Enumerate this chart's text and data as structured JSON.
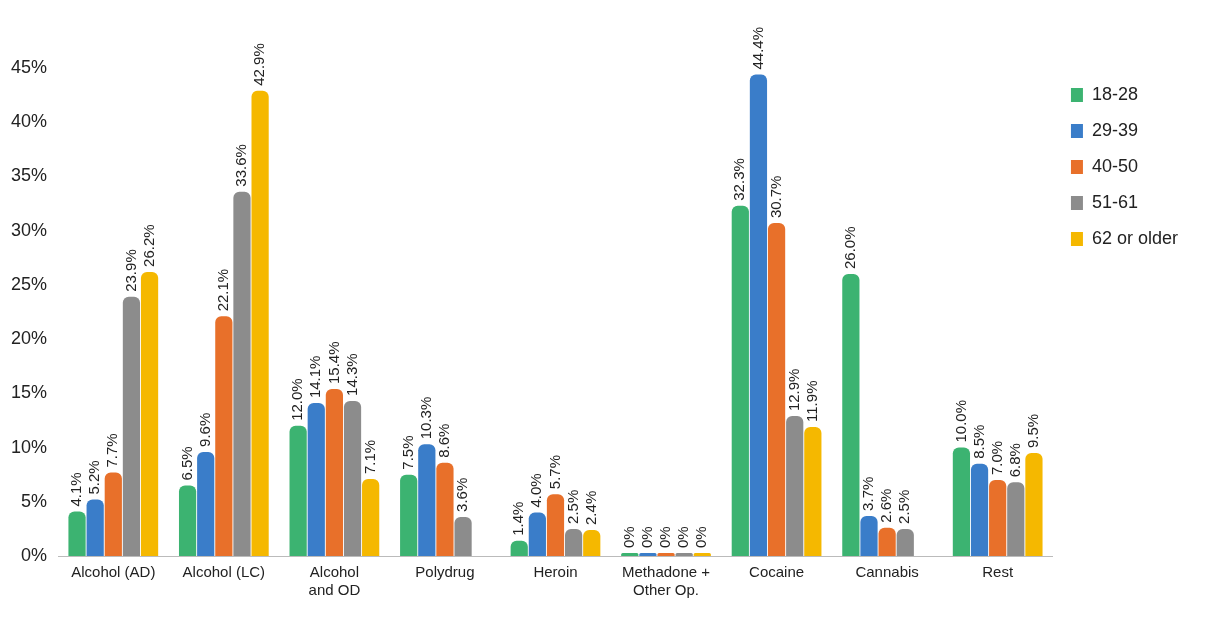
{
  "chart_data": {
    "type": "bar",
    "categories": [
      "Alcohol (AD)",
      "Alcohol (LC)",
      "Alcohol and OD",
      "Polydrug",
      "Heroin",
      "Methadone + Other Op.",
      "Cocaine",
      "Cannabis",
      "Rest"
    ],
    "series": [
      {
        "name": "18-28",
        "color": "#3cb371",
        "values": [
          4.1,
          6.5,
          12.0,
          7.5,
          1.4,
          0,
          32.3,
          26.0,
          10.0
        ],
        "value_labels": [
          "4.1%",
          "6.5%",
          "12.0%",
          "7.5%",
          "1.4%",
          "0%",
          "32.3%",
          "26.0%",
          "10.0%"
        ]
      },
      {
        "name": "29-39",
        "color": "#3a7dc9",
        "values": [
          5.2,
          9.6,
          14.1,
          10.3,
          4.0,
          0,
          44.4,
          3.7,
          8.5
        ],
        "value_labels": [
          "5.2%",
          "9.6%",
          "14.1%",
          "10.3%",
          "4.0%",
          "0%",
          "44.4%",
          "3.7%",
          "8.5%"
        ]
      },
      {
        "name": "40-50",
        "color": "#e8702a",
        "values": [
          7.7,
          22.1,
          15.4,
          8.6,
          5.7,
          0,
          30.7,
          2.6,
          7.0
        ],
        "value_labels": [
          "7.7%",
          "22.1%",
          "15.4%",
          "8.6%",
          "5.7%",
          "0%",
          "30.7%",
          "2.6%",
          "7.0%"
        ]
      },
      {
        "name": "51-61",
        "color": "#8c8c8c",
        "values": [
          23.9,
          33.6,
          14.3,
          3.6,
          2.5,
          0,
          12.9,
          2.5,
          6.8
        ],
        "value_labels": [
          "23.9%",
          "33.6%",
          "14.3%",
          "3.6%",
          "2.5%",
          "0%",
          "12.9%",
          "2.5%",
          "6.8%"
        ]
      },
      {
        "name": "62 or older",
        "color": "#f5b800",
        "values": [
          26.2,
          42.9,
          7.1,
          null,
          2.4,
          0,
          11.9,
          null,
          9.5
        ],
        "value_labels": [
          "26.2%",
          "42.9%",
          "7.1%",
          null,
          "2.4%",
          "0%",
          "11.9%",
          null,
          "9.5%"
        ]
      }
    ],
    "ylim": [
      0,
      45
    ],
    "yticks": [
      {
        "value": 0,
        "label": "0%"
      },
      {
        "value": 5,
        "label": "5%"
      },
      {
        "value": 10,
        "label": "10%"
      },
      {
        "value": 15,
        "label": "15%"
      },
      {
        "value": 20,
        "label": "20%"
      },
      {
        "value": 25,
        "label": "25%"
      },
      {
        "value": 30,
        "label": "30%"
      },
      {
        "value": 35,
        "label": "35%"
      },
      {
        "value": 40,
        "label": "40%"
      },
      {
        "value": 45,
        "label": "45%"
      }
    ],
    "grid": false,
    "legend": "top right"
  }
}
